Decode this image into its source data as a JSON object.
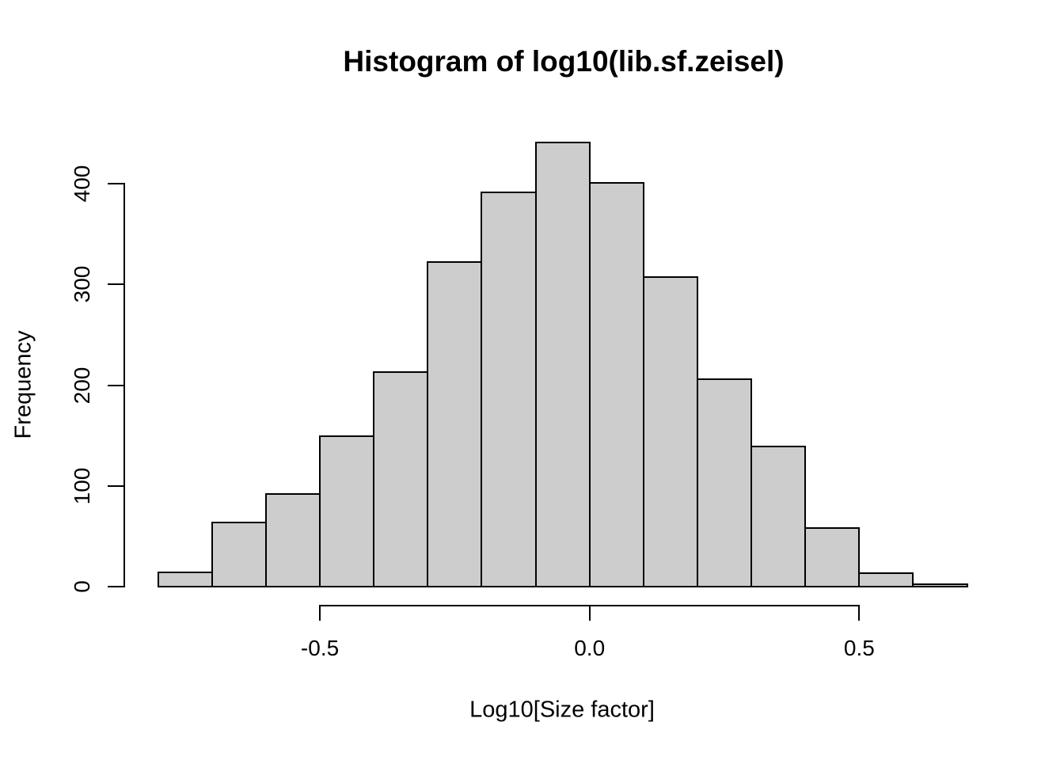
{
  "chart_data": {
    "type": "bar",
    "subtype": "histogram",
    "title": "Histogram of log10(lib.sf.zeisel)",
    "xlabel": "Log10[Size factor]",
    "ylabel": "Frequency",
    "bin_start": -0.8,
    "bin_width": 0.1,
    "bin_edges": [
      -0.8,
      -0.7,
      -0.6,
      -0.5,
      -0.4,
      -0.3,
      -0.2,
      -0.1,
      0.0,
      0.1,
      0.2,
      0.3,
      0.4,
      0.5,
      0.6,
      0.7
    ],
    "counts": [
      14,
      64,
      92,
      149,
      213,
      322,
      391,
      441,
      401,
      307,
      206,
      139,
      58,
      13,
      2
    ],
    "x_ticks": [
      {
        "value": -0.5,
        "label": "-0.5"
      },
      {
        "value": 0.0,
        "label": "0.0"
      },
      {
        "value": 0.5,
        "label": "0.5"
      }
    ],
    "y_ticks": [
      {
        "value": 0,
        "label": "0"
      },
      {
        "value": 100,
        "label": "100"
      },
      {
        "value": 200,
        "label": "200"
      },
      {
        "value": 300,
        "label": "300"
      },
      {
        "value": 400,
        "label": "400"
      },
      {
        "value": 400,
        "label": "400"
      }
    ],
    "ylim": [
      0,
      441
    ],
    "xlim": [
      -0.8,
      0.7
    ],
    "grid": false,
    "legend": false,
    "colors": {
      "bar_fill": "#cdcdcd",
      "bar_border": "#000000",
      "axis": "#000000",
      "text": "#000000",
      "background": "#ffffff"
    }
  }
}
